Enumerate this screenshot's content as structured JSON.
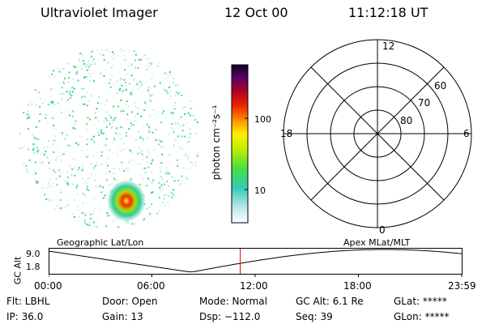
{
  "header": {
    "instrument": "Ultraviolet Imager",
    "date": "12 Oct 00",
    "time": "11:12:18 UT"
  },
  "colorbar": {
    "label": "photon cm⁻²s⁻¹",
    "ticks": [
      "100",
      "10"
    ]
  },
  "polar_plot": {
    "mlt_labels": [
      "12",
      "18",
      "6",
      "0"
    ],
    "lat_labels": [
      "60",
      "70",
      "80"
    ]
  },
  "timeline": {
    "left_caption": "Geographic Lat/Lon",
    "right_caption": "Apex MLat/MLT",
    "ylabel": "GC Alt",
    "y_ticks": [
      "9.0",
      "1.8"
    ],
    "x_ticks": [
      "00:00",
      "06:00",
      "12:00",
      "18:00",
      "23:59"
    ],
    "current_time_fraction": 0.464,
    "marker_color": "#dd0000"
  },
  "status": {
    "flt": "Flt: LBHL",
    "ip": "IP: 36.0",
    "door": "Door: Open",
    "gain": "Gain: 13",
    "mode": "Mode: Normal",
    "dsp": "Dsp: −112.0",
    "gc_alt": "GC Alt: 6.1 Re",
    "seq": "Seq: 39",
    "glat": "GLat: *****",
    "glon": "GLon: *****"
  }
}
